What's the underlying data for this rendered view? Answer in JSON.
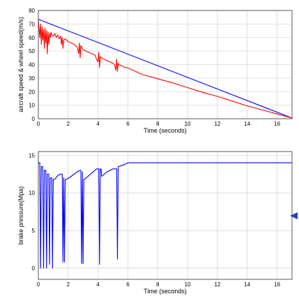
{
  "chart_data": [
    {
      "type": "line",
      "title": "",
      "xlabel": "Time (seconds)",
      "ylabel": "aircraft speed & wheel speed(m/s)",
      "xlim": [
        0,
        17
      ],
      "ylim": [
        0,
        80
      ],
      "xticks": [
        0,
        2,
        4,
        6,
        8,
        10,
        12,
        14,
        16
      ],
      "yticks": [
        0,
        10,
        20,
        30,
        40,
        50,
        60,
        70,
        80
      ],
      "grid": true,
      "series": [
        {
          "color": "#0000ff",
          "x": [
            0,
            17
          ],
          "y": [
            73.5,
            0.5
          ]
        },
        {
          "color": "#ff0000",
          "x": [
            0,
            0.1,
            0.15,
            0.2,
            0.25,
            0.3,
            0.35,
            0.4,
            0.45,
            0.5,
            0.55,
            0.6,
            0.65,
            0.7,
            0.75,
            0.8,
            0.85,
            0.9,
            1.0,
            1.1,
            1.2,
            1.3,
            1.4,
            1.5,
            1.55,
            1.6,
            1.65,
            1.7,
            1.8,
            2.0,
            2.2,
            2.4,
            2.6,
            2.7,
            2.75,
            2.8,
            2.85,
            2.9,
            3.0,
            3.2,
            3.4,
            3.6,
            3.8,
            3.9,
            4.0,
            4.05,
            4.1,
            4.15,
            4.2,
            4.4,
            4.6,
            4.8,
            5.0,
            5.1,
            5.2,
            5.25,
            5.3,
            5.35,
            5.4,
            5.6,
            5.8,
            6.0,
            7.0,
            8.0,
            9.0,
            10.0,
            11.0,
            12.0,
            13.0,
            14.0,
            15.0,
            16.0,
            17.0
          ],
          "y": [
            73,
            60,
            70,
            55,
            68,
            58,
            66,
            52,
            67,
            56,
            65,
            48,
            64,
            55,
            63,
            60,
            64,
            62,
            61,
            63,
            60,
            62,
            59,
            61,
            55,
            60,
            52,
            58,
            59,
            57,
            56,
            55,
            53,
            48,
            56,
            45,
            54,
            53,
            51,
            50,
            49,
            48,
            47,
            44,
            42,
            49,
            38,
            46,
            45,
            44,
            43,
            42,
            41,
            40,
            36,
            44,
            35,
            41,
            40,
            39,
            38,
            37.5,
            32.5,
            29.5,
            26.5,
            23,
            19.5,
            16.5,
            13,
            9.5,
            6.5,
            3.5,
            0.5
          ]
        }
      ]
    },
    {
      "type": "line",
      "title": "",
      "xlabel": "Time (seconds)",
      "ylabel": "brake pressure(Mpa)",
      "xlim": [
        0,
        17
      ],
      "ylim": [
        -1.5,
        15.5
      ],
      "xticks": [
        0,
        2,
        4,
        6,
        8,
        10,
        12,
        14,
        16
      ],
      "yticks": [
        0,
        5,
        10,
        15
      ],
      "grid": true,
      "series": [
        {
          "color": "#0000ff",
          "x": [
            0,
            0.1,
            0.15,
            0.2,
            0.3,
            0.35,
            0.4,
            0.5,
            0.55,
            0.6,
            0.7,
            0.75,
            0.8,
            0.9,
            0.95,
            1.0,
            1.1,
            1.3,
            1.5,
            1.6,
            1.65,
            1.7,
            1.75,
            1.8,
            1.85,
            1.9,
            2.2,
            2.6,
            2.8,
            2.85,
            2.9,
            2.95,
            3.0,
            3.05,
            3.1,
            3.5,
            3.9,
            4.05,
            4.1,
            4.15,
            4.2,
            4.25,
            4.6,
            5.0,
            5.2,
            5.25,
            5.3,
            5.35,
            5.4,
            5.8,
            6.0,
            17.0
          ],
          "y": [
            14,
            14,
            0,
            13.5,
            13.5,
            0,
            13,
            13,
            0,
            12.5,
            12.5,
            0.5,
            12,
            12,
            0,
            11.8,
            11.8,
            12.3,
            12.5,
            12.5,
            0.8,
            12,
            0.8,
            11.8,
            11.8,
            11.8,
            12.2,
            12.8,
            13,
            13,
            0.6,
            12.8,
            0.6,
            11.8,
            11.8,
            12.5,
            13.2,
            13.2,
            0.5,
            13.2,
            13.2,
            12.2,
            12.8,
            13.2,
            13.2,
            13.2,
            1.2,
            13.5,
            13.5,
            13.8,
            14,
            14
          ]
        }
      ]
    }
  ]
}
